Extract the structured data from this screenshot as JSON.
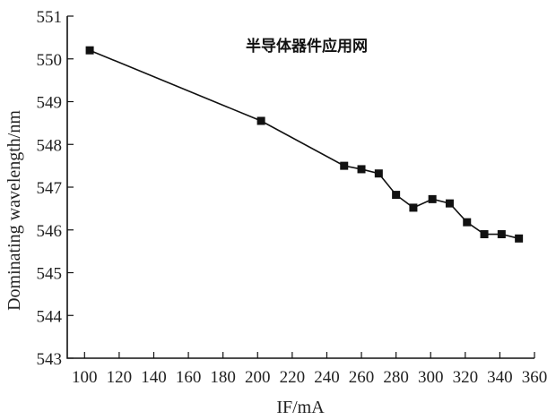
{
  "chart_data": {
    "type": "line",
    "xlabel": "IF/mA",
    "ylabel": "Dominating wavelength/nm",
    "xlim": [
      90,
      360
    ],
    "ylim": [
      543,
      551
    ],
    "xticks": [
      100,
      120,
      140,
      160,
      180,
      200,
      220,
      240,
      260,
      280,
      300,
      320,
      340,
      360
    ],
    "yticks": [
      543,
      544,
      545,
      546,
      547,
      548,
      549,
      550,
      551
    ],
    "grid": false,
    "annotations": [
      "半导体器件应用网"
    ],
    "series": [
      {
        "marker": "square",
        "x": [
          103,
          202,
          250,
          260,
          270,
          280,
          290,
          301,
          311,
          321,
          331,
          341,
          351
        ],
        "y": [
          550.2,
          548.55,
          547.5,
          547.42,
          547.32,
          546.82,
          546.52,
          546.72,
          546.62,
          546.18,
          545.9,
          545.9,
          545.8
        ]
      }
    ]
  }
}
